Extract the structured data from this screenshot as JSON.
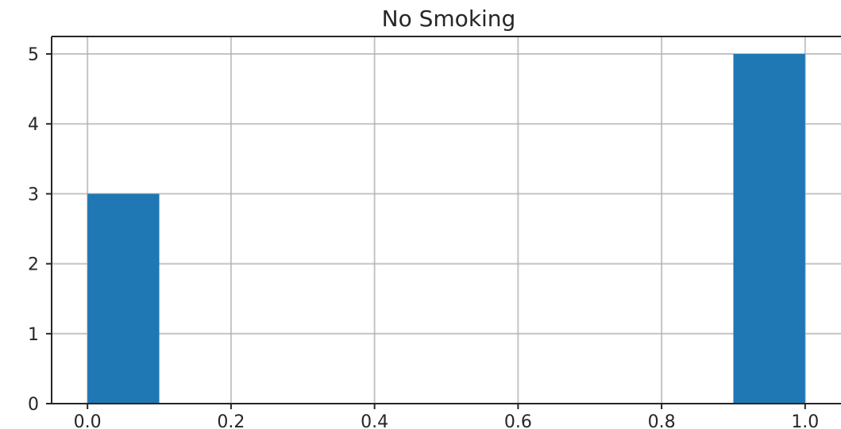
{
  "chart_data": {
    "type": "bar",
    "title": "No Smoking",
    "xlabel": "",
    "ylabel": "",
    "bins": [
      {
        "x0": 0.0,
        "x1": 0.1,
        "count": 3
      },
      {
        "x0": 0.1,
        "x1": 0.2,
        "count": 0
      },
      {
        "x0": 0.2,
        "x1": 0.3,
        "count": 0
      },
      {
        "x0": 0.3,
        "x1": 0.4,
        "count": 0
      },
      {
        "x0": 0.4,
        "x1": 0.5,
        "count": 0
      },
      {
        "x0": 0.5,
        "x1": 0.6,
        "count": 0
      },
      {
        "x0": 0.6,
        "x1": 0.7,
        "count": 0
      },
      {
        "x0": 0.7,
        "x1": 0.8,
        "count": 0
      },
      {
        "x0": 0.8,
        "x1": 0.9,
        "count": 0
      },
      {
        "x0": 0.9,
        "x1": 1.0,
        "count": 5
      }
    ],
    "xlim": [
      -0.05,
      1.05
    ],
    "ylim": [
      0,
      5.25
    ],
    "xticks": [
      0.0,
      0.2,
      0.4,
      0.6,
      0.8,
      1.0
    ],
    "xtick_labels": [
      "0.0",
      "0.2",
      "0.4",
      "0.6",
      "0.8",
      "1.0"
    ],
    "yticks": [
      0,
      1,
      2,
      3,
      4,
      5
    ],
    "ytick_labels": [
      "0",
      "1",
      "2",
      "3",
      "4",
      "5"
    ],
    "grid": true,
    "bar_color": "#1f77b4",
    "grid_color": "#b0b0b0",
    "axis_color": "#262626"
  }
}
